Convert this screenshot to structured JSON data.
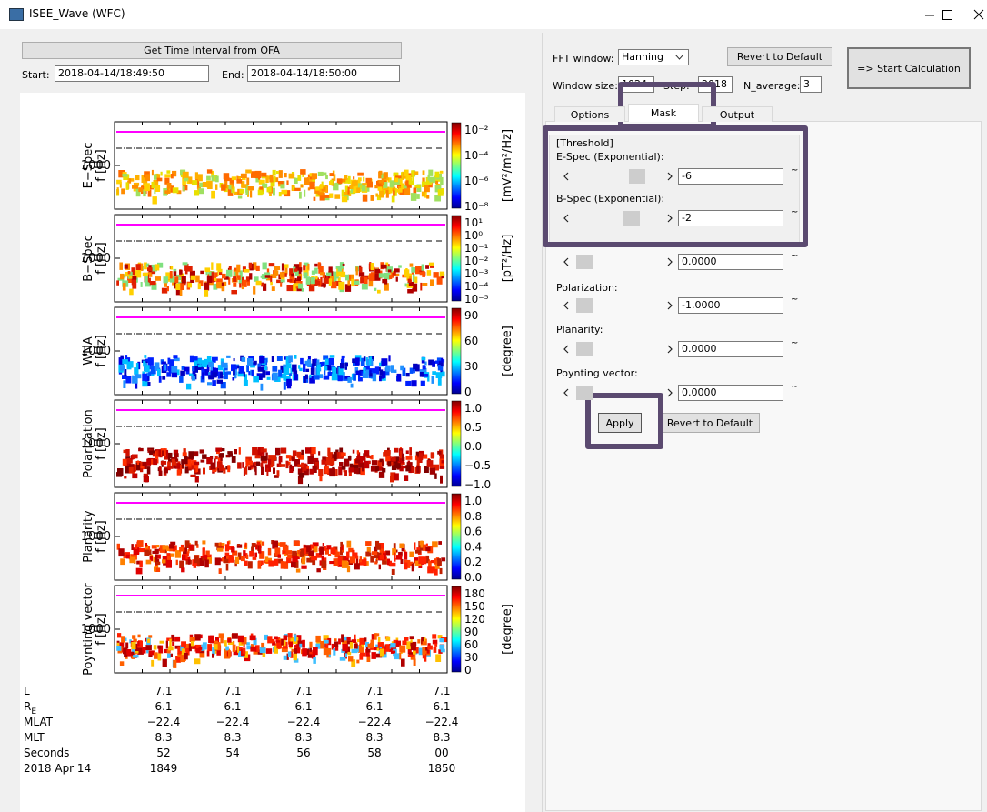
{
  "window": {
    "title": "ISEE_Wave (WFC)"
  },
  "time": {
    "ofa_button": "Get Time Interval from OFA",
    "start_label": "Start:",
    "start": "2018-04-14/18:49:50",
    "end_label": "End:",
    "end": "2018-04-14/18:50:00"
  },
  "plot": {
    "freq_label": "f [Hz]",
    "freq_tick": "1000",
    "panels": [
      {
        "name": "E−Spec",
        "colorbar_ticks": [
          "10⁻²",
          "10⁻⁴",
          "10⁻⁶",
          "10⁻⁸"
        ],
        "colorbar_unit": "[mV²/m²/Hz]"
      },
      {
        "name": "B−Spec",
        "colorbar_ticks": [
          "10¹",
          "10⁰",
          "10⁻¹",
          "10⁻²",
          "10⁻³",
          "10⁻⁴",
          "10⁻⁵"
        ],
        "colorbar_unit": "[pT²/Hz]"
      },
      {
        "name": "WNA",
        "colorbar_ticks": [
          "90",
          "60",
          "30",
          "0"
        ],
        "colorbar_unit": "[degree]"
      },
      {
        "name": "Polarization",
        "colorbar_ticks": [
          "1.0",
          "0.5",
          "0.0",
          "−0.5",
          "−1.0"
        ]
      },
      {
        "name": "Planarity",
        "colorbar_ticks": [
          "1.0",
          "0.8",
          "0.6",
          "0.4",
          "0.2",
          "0.0"
        ]
      },
      {
        "name": "Poynting vector",
        "colorbar_ticks": [
          "180",
          "150",
          "120",
          "90",
          "60",
          "30",
          "0"
        ],
        "colorbar_unit": "[degree]"
      }
    ]
  },
  "orbit": {
    "rows": [
      {
        "label": "L",
        "values": [
          "7.1",
          "7.1",
          "7.1",
          "7.1",
          "7.1"
        ]
      },
      {
        "label": "R",
        "label_sub": "E",
        "values": [
          "6.1",
          "6.1",
          "6.1",
          "6.1",
          "6.1"
        ]
      },
      {
        "label": "MLAT",
        "values": [
          "−22.4",
          "−22.4",
          "−22.4",
          "−22.4",
          "−22.4"
        ]
      },
      {
        "label": "MLT",
        "values": [
          "8.3",
          "8.3",
          "8.3",
          "8.3",
          "8.3"
        ]
      },
      {
        "label": "Seconds",
        "values": [
          "52",
          "54",
          "56",
          "58",
          "00"
        ]
      }
    ],
    "date": "2018 Apr 14",
    "hour_start": "1849",
    "hour_end": "1850"
  },
  "settings": {
    "fft_label": "FFT window:",
    "fft_value": "Hanning",
    "revert": "Revert to Default",
    "start_calc": "=> Start Calculation",
    "window_size_label": "Window size:",
    "window_size": "1024",
    "step_label": "Step:",
    "step": "2018",
    "n_average_label": "N_average:",
    "n_average": "3",
    "tabs": [
      "Options",
      "Mask",
      "Output"
    ]
  },
  "mask": {
    "threshold": "[Threshold]",
    "range_sep": "~",
    "rows": [
      {
        "label": "E-Spec (Exponential):",
        "value": "-6"
      },
      {
        "label": "B-Spec (Exponential):",
        "value": "-2"
      },
      {
        "value": "0.0000"
      },
      {
        "label": "Polarization:",
        "value": "-1.0000"
      },
      {
        "label": "Planarity:",
        "value": "0.0000"
      },
      {
        "label": "Poynting vector:",
        "value": "0.0000"
      }
    ],
    "apply": "Apply",
    "revert": "Revert to Default"
  }
}
